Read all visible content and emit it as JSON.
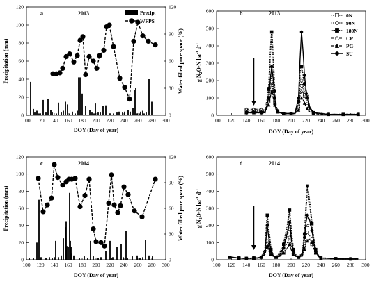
{
  "figure": {
    "panels": [
      {
        "id": "a",
        "letter": "a",
        "title": "2013"
      },
      {
        "id": "b",
        "letter": "b",
        "title": "2013"
      },
      {
        "id": "c",
        "letter": "c",
        "title": "2014"
      },
      {
        "id": "d",
        "letter": "d",
        "title": "2014"
      }
    ],
    "xlabel": "DOY (Day of year)",
    "ylabel_precip": "Precipitation (mm)",
    "ylabel_wfps": "Water filled pore space (%)",
    "ylabel_n2o": "g N2O-N ha-1 d-1"
  },
  "chart_data": [
    {
      "panel": "a",
      "type": "bar+line",
      "title": "2013",
      "xlabel": "DOY (Day of year)",
      "ylabel": "Precipitation (mm)",
      "y2label": "Water filled pore space (%)",
      "xlim": [
        100,
        300
      ],
      "ylim": [
        0,
        120
      ],
      "y2lim": [
        0,
        120
      ],
      "xticks": [
        100,
        120,
        140,
        160,
        180,
        200,
        220,
        240,
        260,
        280,
        300
      ],
      "yticks": [
        0,
        20,
        40,
        60,
        80,
        100,
        120
      ],
      "y2ticks": [
        0,
        30,
        60,
        90,
        120
      ],
      "legend": [
        "Precip.",
        "WFPS"
      ],
      "precip": {
        "x": [
          106,
          110,
          112,
          115,
          118,
          120,
          124,
          128,
          131,
          135,
          137,
          143,
          146,
          150,
          153,
          156,
          159,
          162,
          166,
          170,
          173,
          175,
          177,
          180,
          185,
          191,
          194,
          197,
          199,
          203,
          206,
          210,
          214,
          220,
          225,
          230,
          233,
          238,
          241,
          246,
          249,
          253,
          255,
          257,
          259,
          262,
          264,
          267,
          269,
          272,
          276,
          280
        ],
        "values": [
          37,
          7,
          3,
          5,
          2,
          2,
          17,
          3,
          18,
          6,
          3,
          2,
          14,
          3,
          5,
          15,
          12,
          2,
          4,
          2,
          5,
          42,
          42,
          24,
          10,
          6,
          3,
          2,
          13,
          3,
          3,
          10,
          11,
          2,
          2,
          3,
          4,
          3,
          4,
          6,
          4,
          8,
          28,
          30,
          2,
          2,
          4,
          5,
          2,
          3,
          40,
          15
        ]
      },
      "wfps": {
        "x": [
          138,
          143,
          148,
          152,
          157,
          162,
          168,
          173,
          177,
          181,
          185,
          190,
          196,
          201,
          205,
          211,
          215,
          219,
          225,
          234,
          241,
          248,
          254,
          260,
          267,
          275,
          285
        ],
        "values": [
          46,
          46,
          47,
          52,
          65,
          68,
          59,
          66,
          83,
          87,
          45,
          65,
          60,
          52,
          66,
          72,
          98,
          100,
          76,
          41,
          31,
          18,
          82,
          103,
          88,
          82,
          78
        ]
      }
    },
    {
      "panel": "b",
      "type": "line",
      "title": "2013",
      "xlabel": "DOY (Day of year)",
      "ylabel": "g N2O-N ha-1 d-1",
      "xlim": [
        100,
        300
      ],
      "ylim": [
        0,
        600
      ],
      "xticks": [
        100,
        120,
        140,
        160,
        180,
        200,
        220,
        240,
        260,
        280,
        300
      ],
      "yticks": [
        0,
        100,
        200,
        300,
        400,
        500,
        600
      ],
      "legend": [
        "0N",
        "90N",
        "180N",
        "CP",
        "PG",
        "SU"
      ],
      "annotation": "arrow at DOY 150",
      "x": [
        140,
        145,
        150,
        155,
        160,
        165,
        170,
        172,
        174,
        176,
        178,
        180,
        182,
        185,
        190,
        195,
        200,
        205,
        210,
        212,
        214,
        216,
        218,
        220,
        222,
        225,
        230,
        240,
        250,
        260,
        270,
        280,
        290
      ],
      "series": [
        {
          "name": "0N",
          "values": [
            30,
            30,
            30,
            30,
            30,
            25,
            80,
            140,
            190,
            120,
            70,
            30,
            20,
            15,
            10,
            10,
            10,
            10,
            40,
            120,
            170,
            150,
            110,
            90,
            70,
            30,
            15,
            10,
            5,
            5,
            5,
            5,
            5
          ]
        },
        {
          "name": "90N",
          "values": [
            25,
            25,
            25,
            25,
            25,
            20,
            90,
            170,
            230,
            150,
            90,
            40,
            20,
            15,
            10,
            10,
            10,
            10,
            60,
            160,
            200,
            170,
            130,
            110,
            80,
            35,
            15,
            10,
            5,
            5,
            5,
            5,
            5
          ]
        },
        {
          "name": "180N",
          "values": [
            15,
            15,
            15,
            15,
            15,
            15,
            150,
            350,
            480,
            330,
            140,
            50,
            25,
            15,
            10,
            10,
            10,
            10,
            80,
            250,
            280,
            230,
            180,
            140,
            100,
            45,
            15,
            10,
            5,
            5,
            5,
            5,
            5
          ]
        },
        {
          "name": "CP",
          "values": [
            35,
            35,
            35,
            35,
            35,
            30,
            60,
            110,
            130,
            100,
            60,
            30,
            20,
            15,
            10,
            10,
            10,
            10,
            50,
            110,
            140,
            130,
            120,
            130,
            120,
            50,
            15,
            10,
            5,
            5,
            5,
            5,
            5
          ]
        },
        {
          "name": "PG",
          "values": [
            20,
            20,
            20,
            20,
            20,
            20,
            60,
            100,
            140,
            100,
            60,
            30,
            20,
            15,
            10,
            10,
            10,
            10,
            30,
            80,
            100,
            90,
            70,
            50,
            40,
            20,
            10,
            5,
            5,
            5,
            5,
            5,
            5
          ]
        },
        {
          "name": "SU",
          "values": [
            15,
            15,
            15,
            15,
            15,
            15,
            100,
            200,
            280,
            210,
            100,
            40,
            20,
            15,
            10,
            10,
            10,
            10,
            100,
            320,
            480,
            370,
            230,
            150,
            100,
            40,
            15,
            10,
            5,
            5,
            5,
            5,
            5
          ]
        }
      ]
    },
    {
      "panel": "c",
      "type": "bar+line",
      "title": "2014",
      "xlabel": "DOY (Day of year)",
      "ylabel": "Precipitation (mm)",
      "y2label": "Water filled pore space (%)",
      "xlim": [
        100,
        300
      ],
      "ylim": [
        0,
        120
      ],
      "y2lim": [
        0,
        120
      ],
      "xticks": [
        100,
        120,
        140,
        160,
        180,
        200,
        220,
        240,
        260,
        280,
        300
      ],
      "yticks": [
        0,
        20,
        40,
        60,
        80,
        100,
        120
      ],
      "y2ticks": [
        0,
        30,
        60,
        90,
        120
      ],
      "legend": [],
      "precip": {
        "x": [
          104,
          110,
          115,
          118,
          121,
          128,
          133,
          137,
          140,
          142,
          146,
          150,
          153,
          156,
          157,
          158,
          160,
          162,
          163,
          164,
          165,
          168,
          176,
          183,
          188,
          192,
          196,
          203,
          207,
          214,
          220,
          222,
          224,
          230,
          236,
          239,
          243,
          245,
          252,
          259,
          263,
          267,
          271,
          276,
          281
        ],
        "values": [
          2,
          2,
          20,
          70,
          3,
          2,
          3,
          2,
          3,
          22,
          3,
          5,
          25,
          38,
          45,
          16,
          15,
          78,
          22,
          15,
          7,
          5,
          2,
          4,
          2,
          22,
          4,
          2,
          3,
          10,
          22,
          2,
          3,
          15,
          18,
          3,
          34,
          2,
          4,
          5,
          2,
          3,
          23,
          5,
          4
        ]
      },
      "wfps": {
        "x": [
          117,
          124,
          130,
          136,
          140,
          145,
          152,
          157,
          161,
          165,
          170,
          177,
          184,
          190,
          196,
          200,
          207,
          212,
          218,
          222,
          226,
          231,
          235,
          240,
          246,
          255,
          266,
          285
        ],
        "values": [
          95,
          56,
          64,
          72,
          111,
          96,
          87,
          91,
          94,
          94,
          95,
          62,
          75,
          94,
          36,
          21,
          20,
          16,
          66,
          99,
          64,
          55,
          63,
          85,
          76,
          57,
          50,
          94
        ]
      }
    },
    {
      "panel": "d",
      "type": "line",
      "title": "2014",
      "xlabel": "DOY (Day of year)",
      "ylabel": "g N2O-N ha-1 d-1",
      "xlim": [
        100,
        300
      ],
      "ylim": [
        0,
        600
      ],
      "xticks": [
        100,
        120,
        140,
        160,
        180,
        200,
        220,
        240,
        260,
        280,
        300
      ],
      "yticks": [
        0,
        100,
        200,
        300,
        400,
        500,
        600
      ],
      "legend": [],
      "annotation": "arrow at DOY 150",
      "x": [
        118,
        125,
        130,
        135,
        140,
        145,
        150,
        155,
        160,
        165,
        168,
        170,
        173,
        176,
        180,
        185,
        190,
        195,
        198,
        200,
        203,
        206,
        210,
        215,
        218,
        220,
        222,
        225,
        228,
        230,
        233,
        236,
        240,
        250,
        260,
        270,
        280,
        290
      ],
      "series": [
        {
          "name": "0N",
          "values": [
            15,
            12,
            10,
            8,
            8,
            8,
            10,
            10,
            15,
            30,
            90,
            60,
            30,
            20,
            15,
            20,
            40,
            70,
            90,
            60,
            30,
            20,
            15,
            20,
            60,
            100,
            110,
            100,
            90,
            70,
            40,
            20,
            10,
            8,
            6,
            5,
            5,
            5
          ]
        },
        {
          "name": "90N",
          "values": [
            15,
            12,
            10,
            8,
            8,
            8,
            10,
            10,
            15,
            40,
            110,
            80,
            40,
            20,
            15,
            25,
            50,
            100,
            130,
            90,
            40,
            25,
            15,
            25,
            80,
            140,
            160,
            140,
            120,
            90,
            50,
            25,
            10,
            8,
            6,
            5,
            5,
            5
          ]
        },
        {
          "name": "180N",
          "values": [
            15,
            12,
            10,
            8,
            8,
            8,
            10,
            10,
            15,
            60,
            260,
            180,
            60,
            25,
            15,
            40,
            90,
            200,
            290,
            180,
            60,
            30,
            15,
            40,
            150,
            300,
            430,
            330,
            210,
            130,
            60,
            30,
            10,
            8,
            6,
            5,
            5,
            5
          ]
        },
        {
          "name": "CP",
          "values": [
            15,
            12,
            10,
            8,
            8,
            8,
            10,
            10,
            15,
            35,
            100,
            70,
            35,
            20,
            15,
            30,
            70,
            140,
            180,
            120,
            45,
            25,
            15,
            30,
            110,
            190,
            200,
            210,
            180,
            120,
            55,
            25,
            10,
            8,
            6,
            5,
            5,
            5
          ]
        },
        {
          "name": "PG",
          "values": [
            15,
            12,
            10,
            8,
            8,
            8,
            10,
            10,
            15,
            30,
            80,
            50,
            30,
            20,
            15,
            20,
            40,
            70,
            90,
            60,
            30,
            20,
            15,
            20,
            60,
            100,
            110,
            120,
            100,
            70,
            40,
            20,
            10,
            8,
            6,
            5,
            5,
            5
          ]
        },
        {
          "name": "SU",
          "values": [
            15,
            12,
            10,
            8,
            8,
            8,
            10,
            10,
            15,
            50,
            200,
            130,
            50,
            25,
            15,
            30,
            70,
            160,
            220,
            140,
            50,
            25,
            15,
            35,
            130,
            220,
            260,
            230,
            170,
            110,
            50,
            25,
            10,
            8,
            6,
            5,
            5,
            5
          ]
        }
      ]
    }
  ]
}
